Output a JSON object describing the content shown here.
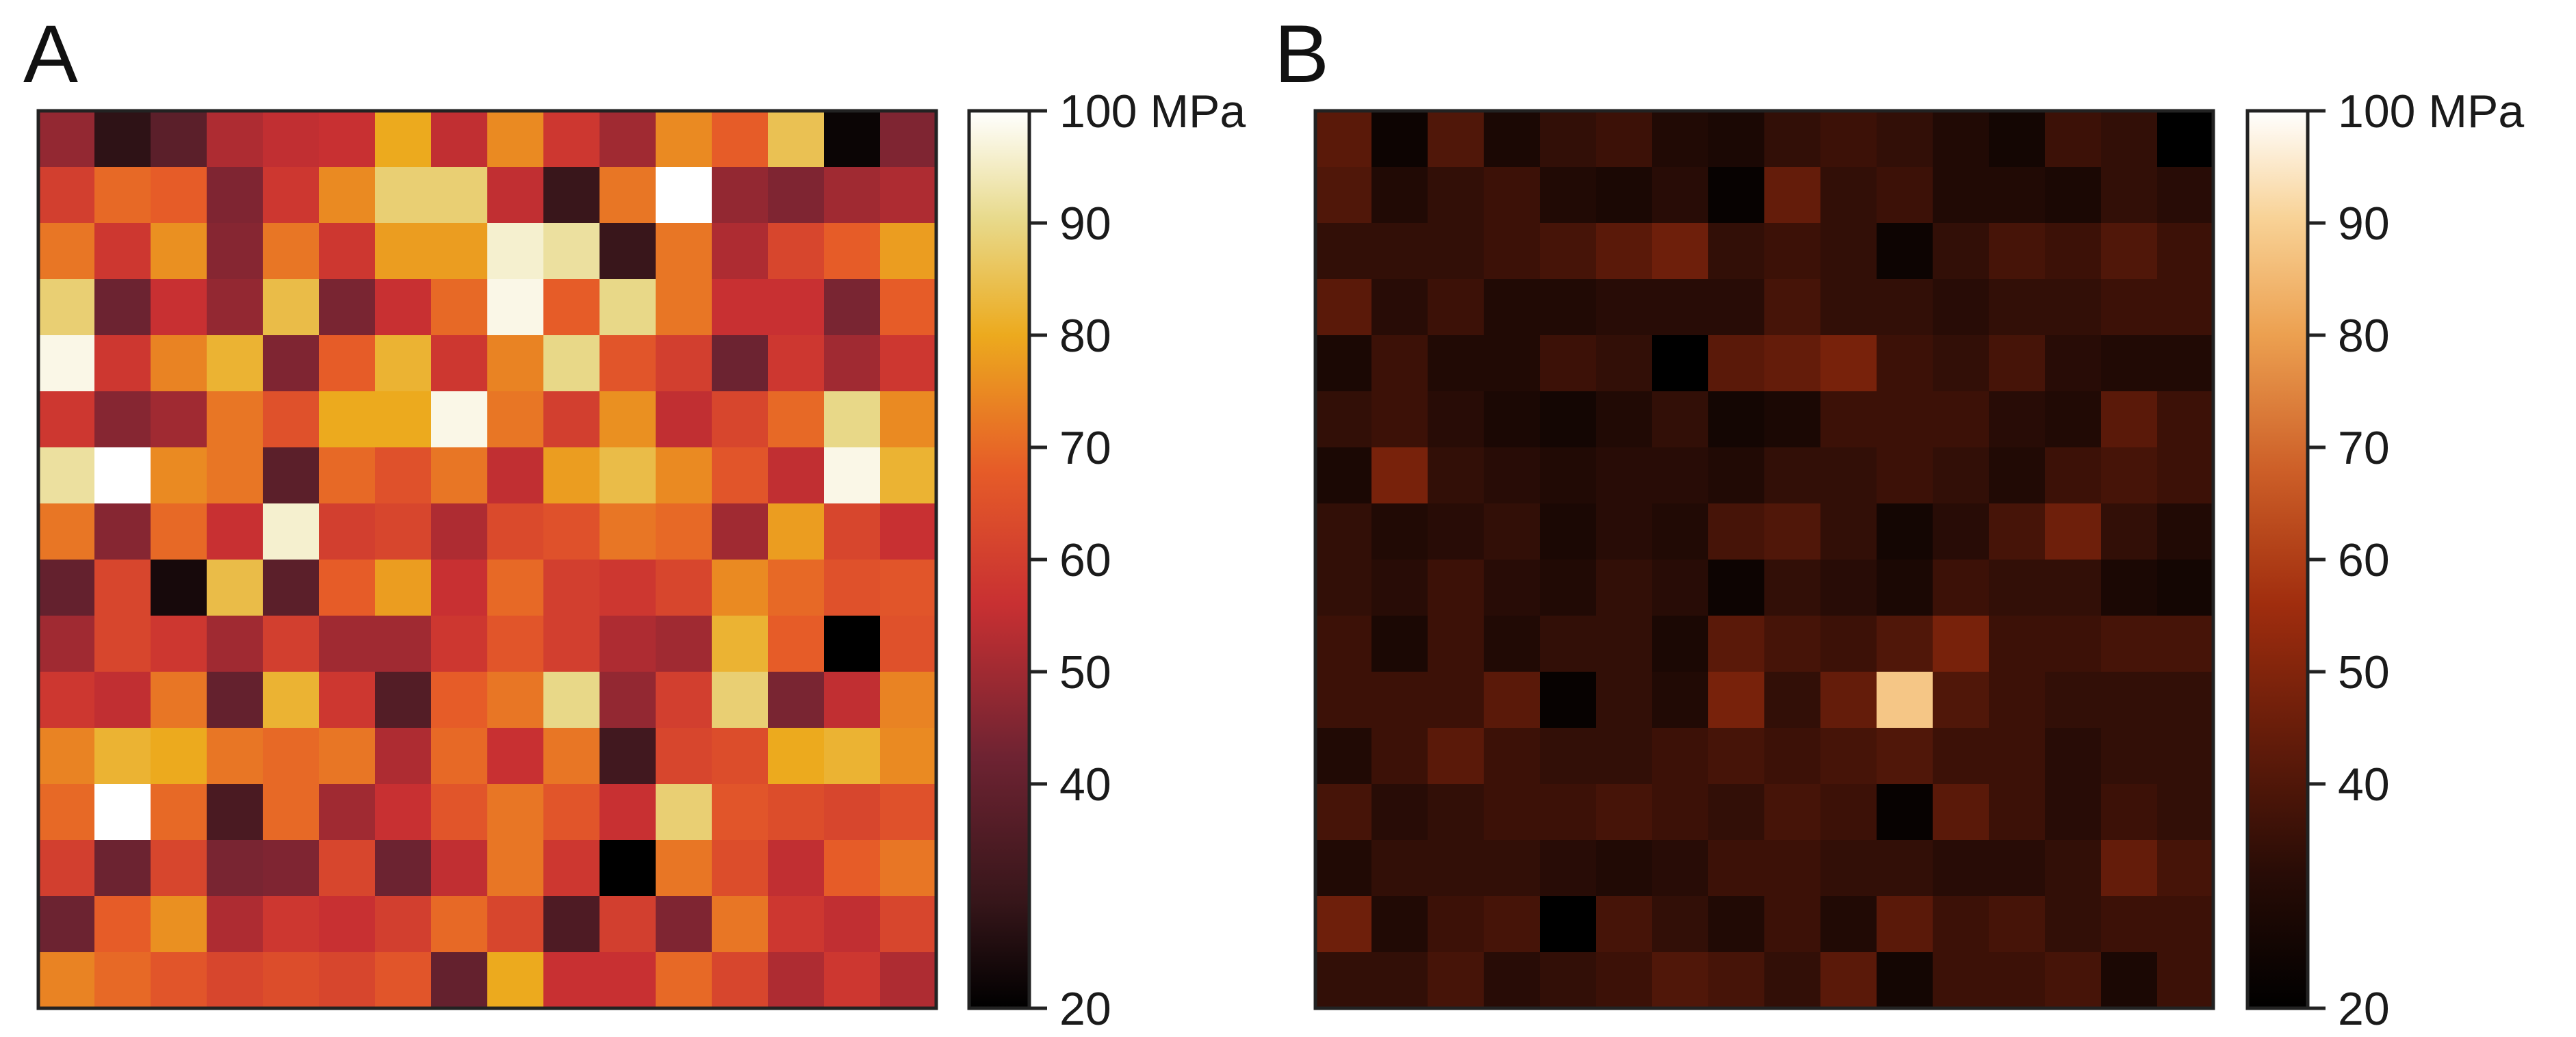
{
  "chart_data": [
    {
      "type": "heatmap",
      "panel_label": "A",
      "rows": 16,
      "cols": 16,
      "unit": "MPa",
      "colorbar": {
        "ticks": [
          20,
          40,
          50,
          60,
          70,
          80,
          90,
          100
        ],
        "tick_labels": [
          "20",
          "40",
          "50",
          "60",
          "70",
          "80",
          "90",
          "100 MPa"
        ],
        "range": [
          20,
          100
        ],
        "colormap": "heat"
      },
      "values": [
        [
          48,
          28,
          38,
          52,
          55,
          56,
          80,
          55,
          75,
          58,
          50,
          75,
          68,
          85,
          22,
          45
        ],
        [
          60,
          70,
          68,
          45,
          58,
          75,
          88,
          88,
          55,
          30,
          72,
          100,
          48,
          45,
          50,
          52
        ],
        [
          72,
          58,
          76,
          46,
          72,
          58,
          78,
          78,
          96,
          92,
          30,
          72,
          52,
          62,
          68,
          78
        ],
        [
          88,
          42,
          56,
          48,
          84,
          44,
          56,
          70,
          98,
          68,
          90,
          72,
          56,
          56,
          44,
          68
        ],
        [
          98,
          58,
          74,
          82,
          45,
          68,
          82,
          58,
          74,
          90,
          66,
          60,
          42,
          58,
          50,
          58
        ],
        [
          58,
          46,
          50,
          72,
          65,
          80,
          80,
          98,
          72,
          60,
          76,
          55,
          62,
          70,
          90,
          75
        ],
        [
          92,
          100,
          75,
          72,
          38,
          70,
          65,
          72,
          55,
          78,
          84,
          75,
          66,
          55,
          98,
          82
        ],
        [
          72,
          46,
          70,
          56,
          96,
          60,
          62,
          52,
          63,
          65,
          72,
          70,
          50,
          78,
          62,
          56
        ],
        [
          40,
          62,
          24,
          84,
          38,
          68,
          78,
          56,
          70,
          60,
          58,
          62,
          75,
          70,
          65,
          66
        ],
        [
          50,
          62,
          58,
          50,
          60,
          50,
          50,
          58,
          66,
          60,
          52,
          50,
          82,
          68,
          20,
          65
        ],
        [
          58,
          55,
          72,
          40,
          82,
          58,
          36,
          68,
          72,
          90,
          48,
          60,
          88,
          44,
          55,
          74
        ],
        [
          74,
          82,
          80,
          72,
          70,
          72,
          52,
          70,
          56,
          72,
          32,
          62,
          64,
          80,
          82,
          75
        ],
        [
          70,
          100,
          70,
          34,
          70,
          50,
          56,
          66,
          72,
          66,
          56,
          88,
          66,
          64,
          62,
          65
        ],
        [
          60,
          42,
          62,
          44,
          45,
          62,
          42,
          55,
          72,
          58,
          20,
          72,
          64,
          55,
          68,
          72
        ],
        [
          42,
          68,
          76,
          52,
          58,
          56,
          60,
          70,
          62,
          35,
          60,
          45,
          72,
          58,
          55,
          62
        ],
        [
          74,
          70,
          66,
          62,
          64,
          62,
          66,
          40,
          80,
          56,
          56,
          70,
          62,
          52,
          58,
          52
        ]
      ]
    },
    {
      "type": "heatmap",
      "panel_label": "B",
      "rows": 16,
      "cols": 16,
      "unit": "MPa",
      "colorbar": {
        "ticks": [
          20,
          40,
          50,
          60,
          70,
          80,
          90,
          100
        ],
        "tick_labels": [
          "20",
          "40",
          "50",
          "60",
          "70",
          "80",
          "90",
          "100 MPa"
        ],
        "range": [
          20,
          100
        ],
        "colormap": "copper"
      },
      "values": [
        [
          42,
          24,
          40,
          28,
          34,
          36,
          30,
          28,
          34,
          36,
          34,
          30,
          26,
          36,
          34,
          20
        ],
        [
          40,
          30,
          34,
          36,
          30,
          28,
          32,
          22,
          44,
          34,
          36,
          30,
          30,
          28,
          34,
          32
        ],
        [
          34,
          34,
          34,
          36,
          38,
          42,
          46,
          34,
          36,
          34,
          24,
          34,
          38,
          36,
          40,
          36
        ],
        [
          42,
          32,
          36,
          30,
          30,
          32,
          32,
          32,
          38,
          34,
          34,
          32,
          34,
          34,
          36,
          36
        ],
        [
          28,
          36,
          30,
          30,
          36,
          34,
          20,
          42,
          44,
          48,
          36,
          34,
          38,
          32,
          30,
          30
        ],
        [
          34,
          36,
          32,
          28,
          26,
          30,
          34,
          26,
          28,
          36,
          36,
          36,
          32,
          30,
          42,
          36
        ],
        [
          28,
          48,
          34,
          32,
          30,
          32,
          32,
          30,
          34,
          34,
          36,
          34,
          30,
          36,
          38,
          36
        ],
        [
          34,
          30,
          32,
          34,
          28,
          32,
          30,
          38,
          40,
          34,
          26,
          32,
          38,
          46,
          34,
          30
        ],
        [
          34,
          32,
          36,
          32,
          30,
          34,
          32,
          24,
          34,
          32,
          28,
          36,
          34,
          34,
          28,
          26
        ],
        [
          36,
          28,
          36,
          30,
          34,
          34,
          28,
          42,
          38,
          36,
          40,
          48,
          36,
          36,
          38,
          38
        ],
        [
          36,
          36,
          36,
          42,
          22,
          34,
          30,
          48,
          34,
          44,
          88,
          40,
          36,
          34,
          34,
          34
        ],
        [
          30,
          36,
          42,
          36,
          34,
          34,
          36,
          38,
          36,
          38,
          40,
          36,
          36,
          32,
          34,
          34
        ],
        [
          38,
          32,
          34,
          36,
          36,
          38,
          36,
          34,
          38,
          36,
          22,
          42,
          36,
          32,
          36,
          34
        ],
        [
          30,
          34,
          34,
          34,
          32,
          30,
          32,
          36,
          36,
          34,
          34,
          32,
          32,
          34,
          44,
          38
        ],
        [
          46,
          30,
          36,
          38,
          20,
          38,
          34,
          30,
          36,
          30,
          42,
          36,
          38,
          34,
          36,
          36
        ],
        [
          34,
          34,
          38,
          32,
          34,
          36,
          40,
          38,
          34,
          42,
          26,
          36,
          36,
          38,
          28,
          36
        ]
      ]
    }
  ]
}
